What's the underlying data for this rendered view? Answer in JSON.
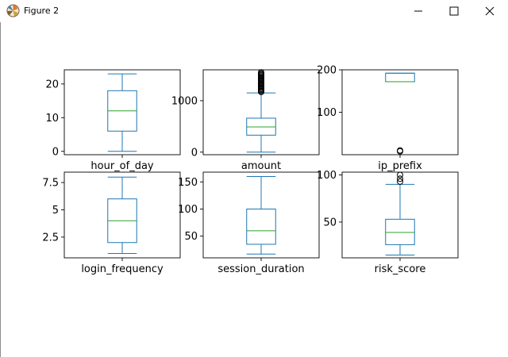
{
  "window": {
    "title": "Figure 2",
    "icons": {
      "app": "matplotlib-logo-icon",
      "minimize": "minimize-icon",
      "maximize": "maximize-icon",
      "close": "close-icon"
    }
  },
  "colors": {
    "box": "#1f77b4",
    "median": "#2ca02c",
    "frame": "#000000"
  },
  "chart_data": [
    {
      "type": "box",
      "xlabel": "hour_of_day",
      "ylim": [
        -1,
        24.2
      ],
      "yticks": [
        0,
        10,
        20
      ],
      "stats": {
        "whislo": 0,
        "q1": 6,
        "med": 12,
        "q3": 18,
        "whishi": 23
      },
      "outliers": []
    },
    {
      "type": "box",
      "xlabel": "amount",
      "ylim": [
        -50,
        1600
      ],
      "yticks": [
        0,
        1000
      ],
      "stats": {
        "whislo": 0,
        "q1": 330,
        "med": 490,
        "q3": 660,
        "whishi": 1150
      },
      "outliers": [
        1170,
        1190,
        1210,
        1230,
        1250,
        1270,
        1290,
        1310,
        1330,
        1350,
        1370,
        1390,
        1410,
        1430,
        1450,
        1470,
        1490,
        1510,
        1530,
        1550
      ]
    },
    {
      "type": "box",
      "xlabel": "ip_prefix",
      "ylim": [
        0,
        200
      ],
      "yticks": [
        100,
        200
      ],
      "stats": {
        "whislo": 172,
        "q1": 172,
        "med": 172,
        "q3": 192,
        "whishi": 192
      },
      "outliers": [
        8,
        10
      ]
    },
    {
      "type": "box",
      "xlabel": "login_frequency",
      "ylim": [
        0.6,
        8.45
      ],
      "yticks": [
        2.5,
        5.0,
        7.5
      ],
      "stats": {
        "whislo": 1,
        "q1": 2,
        "med": 4,
        "q3": 6,
        "whishi": 8
      },
      "outliers": []
    },
    {
      "type": "box",
      "xlabel": "session_duration",
      "ylim": [
        10,
        168
      ],
      "yticks": [
        50,
        100,
        150
      ],
      "stats": {
        "whislo": 17,
        "q1": 35,
        "med": 60,
        "q3": 100,
        "whishi": 160
      },
      "outliers": []
    },
    {
      "type": "box",
      "xlabel": "risk_score",
      "ylim": [
        12,
        103
      ],
      "yticks": [
        50,
        100
      ],
      "stats": {
        "whislo": 15,
        "q1": 26,
        "med": 39,
        "q3": 53,
        "whishi": 90
      },
      "outliers": [
        93,
        96,
        100
      ]
    }
  ]
}
